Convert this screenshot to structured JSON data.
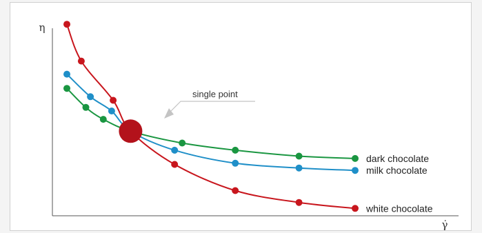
{
  "chart_data": {
    "type": "line",
    "xlabel": "γ̇",
    "ylabel": "η",
    "grid": false,
    "x_ticks_shown": false,
    "y_ticks_shown": false,
    "series": [
      {
        "name": "dark chocolate",
        "color": "#1a9641",
        "points": [
          [
            10,
            73
          ],
          [
            35,
            57
          ],
          [
            58,
            47
          ],
          [
            94,
            37
          ],
          [
            162,
            27
          ],
          [
            232,
            21
          ],
          [
            316,
            16
          ],
          [
            390,
            14
          ]
        ]
      },
      {
        "name": "milk chocolate",
        "color": "#1f8fc8",
        "points": [
          [
            10,
            85
          ],
          [
            41,
            66
          ],
          [
            69,
            54
          ],
          [
            94,
            37
          ],
          [
            152,
            21
          ],
          [
            232,
            10
          ],
          [
            316,
            6
          ],
          [
            390,
            4
          ]
        ]
      },
      {
        "name": "white chocolate",
        "color": "#c8161d",
        "points": [
          [
            10,
            127
          ],
          [
            29,
            96
          ],
          [
            71,
            63
          ],
          [
            94,
            37
          ],
          [
            152,
            9
          ],
          [
            232,
            -13
          ],
          [
            316,
            -23
          ],
          [
            390,
            -28
          ]
        ]
      }
    ],
    "annotation": {
      "text": "single point",
      "point": [
        94,
        37
      ],
      "color": "#b3121b"
    },
    "xlim": [
      0,
      400
    ],
    "ylim": [
      -40,
      130
    ]
  }
}
